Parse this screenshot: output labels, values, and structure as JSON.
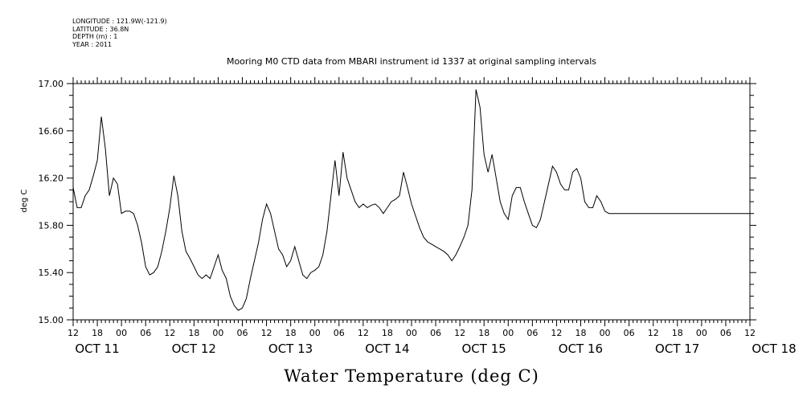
{
  "header": {
    "lines": [
      "LONGITUDE : 121.9W(-121.9)",
      "LATITUDE : 36.8N",
      "DEPTH (m) : 1",
      "YEAR : 2011"
    ]
  },
  "chart_data": {
    "type": "line",
    "title": "Mooring M0 CTD data from MBARI instrument id 1337 at original sampling intervals",
    "xlabel": "Water Temperature (deg C)",
    "ylabel": "deg C",
    "ylim": [
      15.0,
      17.0
    ],
    "yticks": [
      "15.00",
      "15.40",
      "15.80",
      "16.20",
      "16.60",
      "17.00"
    ],
    "xlim_hours": [
      0,
      168
    ],
    "xtick_hour_labels": [
      "12",
      "18",
      "00",
      "06",
      "12",
      "18",
      "00",
      "06",
      "12",
      "18",
      "00",
      "06",
      "12",
      "18",
      "00",
      "06",
      "12",
      "18",
      "00",
      "06",
      "12",
      "18",
      "00",
      "06",
      "12",
      "18",
      "00",
      "06",
      "12"
    ],
    "date_labels": [
      {
        "label": "OCT 11",
        "hour": 0
      },
      {
        "label": "OCT 12",
        "hour": 24
      },
      {
        "label": "OCT 13",
        "hour": 48
      },
      {
        "label": "OCT 14",
        "hour": 72
      },
      {
        "label": "OCT 15",
        "hour": 96
      },
      {
        "label": "OCT 16",
        "hour": 120
      },
      {
        "label": "OCT 17",
        "hour": 144
      },
      {
        "label": "OCT 18",
        "hour": 168
      }
    ],
    "grid": false,
    "series": [
      {
        "color": "#000000",
        "x_hours_since_oct11_12": [
          0,
          1,
          2,
          3,
          4,
          5,
          6,
          7,
          8,
          9,
          10,
          11,
          12,
          13,
          14,
          15,
          16,
          17,
          18,
          19,
          20,
          21,
          22,
          23,
          24,
          25,
          26,
          27,
          28,
          29,
          30,
          31,
          32,
          33,
          34,
          35,
          36,
          37,
          38,
          39,
          40,
          41,
          42,
          43,
          44,
          45,
          46,
          47,
          48,
          49,
          50,
          51,
          52,
          53,
          54,
          55,
          56,
          57,
          58,
          59,
          60,
          61,
          62,
          63,
          64,
          65,
          66,
          67,
          68,
          69,
          70,
          71,
          72,
          73,
          74,
          75,
          76,
          77,
          78,
          79,
          80,
          81,
          82,
          83,
          84,
          85,
          86,
          87,
          88,
          89,
          90,
          91,
          92,
          93,
          94,
          95,
          96,
          97,
          98,
          99,
          100,
          101,
          102,
          103,
          104,
          105,
          106,
          107,
          108,
          109,
          110,
          111,
          112,
          113,
          114,
          115,
          116,
          117,
          118,
          119,
          120,
          121,
          122,
          123,
          124,
          125,
          126,
          127,
          128,
          129,
          130,
          131,
          132,
          133,
          134,
          135,
          136,
          137,
          138,
          139,
          140,
          141,
          142,
          143,
          144,
          145,
          146,
          147,
          148,
          149,
          150,
          151,
          152,
          153,
          154,
          155,
          156,
          157,
          158,
          159,
          160,
          161,
          162,
          163,
          164,
          165,
          166,
          167,
          168
        ],
        "values": [
          16.12,
          15.95,
          15.95,
          16.05,
          16.1,
          16.22,
          16.35,
          16.72,
          16.45,
          16.05,
          16.2,
          16.15,
          15.9,
          15.92,
          15.92,
          15.9,
          15.8,
          15.65,
          15.45,
          15.38,
          15.4,
          15.45,
          15.58,
          15.75,
          15.95,
          16.22,
          16.05,
          15.75,
          15.58,
          15.52,
          15.45,
          15.38,
          15.35,
          15.38,
          15.35,
          15.45,
          15.55,
          15.42,
          15.35,
          15.2,
          15.12,
          15.08,
          15.1,
          15.18,
          15.35,
          15.5,
          15.65,
          15.85,
          15.98,
          15.9,
          15.75,
          15.6,
          15.55,
          15.45,
          15.5,
          15.62,
          15.5,
          15.38,
          15.35,
          15.4,
          15.42,
          15.45,
          15.55,
          15.75,
          16.05,
          16.35,
          16.05,
          16.42,
          16.2,
          16.1,
          16.0,
          15.95,
          15.98,
          15.95,
          15.97,
          15.98,
          15.95,
          15.9,
          15.95,
          16.0,
          16.02,
          16.05,
          16.25,
          16.12,
          15.98,
          15.88,
          15.78,
          15.7,
          15.66,
          15.64,
          15.62,
          15.6,
          15.58,
          15.55,
          15.5,
          15.55,
          15.62,
          15.7,
          15.8,
          16.1,
          16.95,
          16.8,
          16.4,
          16.25,
          16.4,
          16.2,
          16.0,
          15.9,
          15.85,
          16.05,
          16.12,
          16.12,
          16.0,
          15.9,
          15.8,
          15.78,
          15.85,
          16.0,
          16.15,
          16.3,
          16.25,
          16.15,
          16.1,
          16.1,
          16.25,
          16.28,
          16.2,
          16.0,
          15.95,
          15.95,
          16.05,
          16.0,
          15.92,
          15.9,
          15.9,
          15.9,
          15.9,
          15.9,
          15.9,
          15.9,
          15.9,
          15.9,
          15.9,
          15.9,
          15.9,
          15.9,
          15.9,
          15.9,
          15.9,
          15.9,
          15.9,
          15.9,
          15.9,
          15.9,
          15.9,
          15.9,
          15.9,
          15.9,
          15.9,
          15.9,
          15.9,
          15.9,
          15.9,
          15.9,
          15.9,
          15.9,
          15.9,
          15.9,
          15.9,
          15.9,
          15.9
        ]
      }
    ]
  }
}
